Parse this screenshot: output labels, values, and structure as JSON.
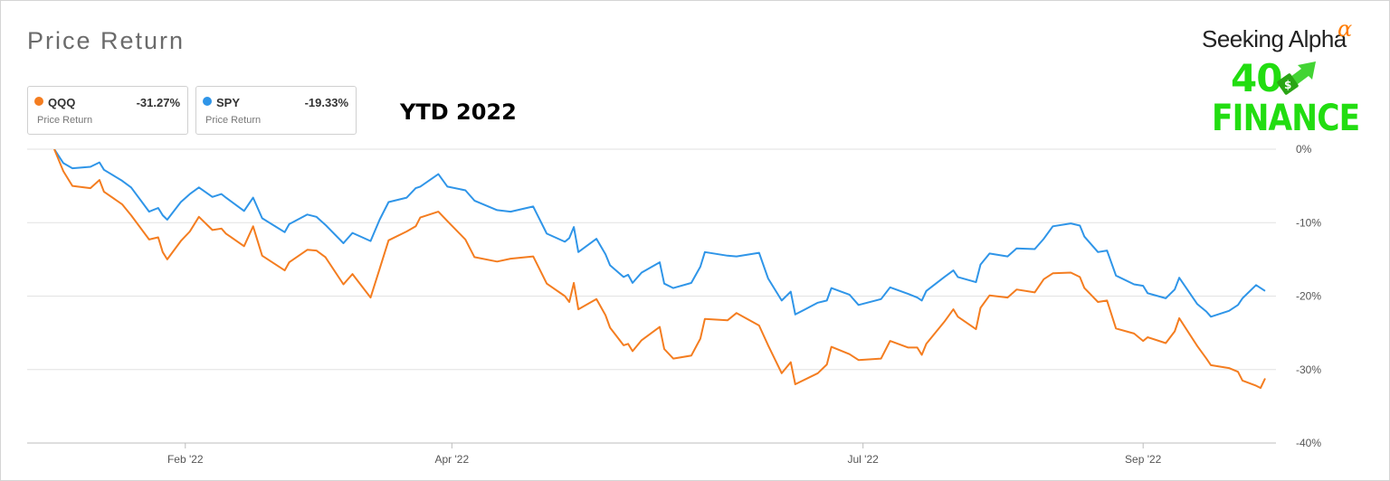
{
  "header": {
    "title": "Price Return"
  },
  "annotation": "YTD 2022",
  "logo": {
    "brand": "Seeking Alpha",
    "alpha_symbol": "α",
    "line1": "40",
    "line2": "FINANCE",
    "icon": "dollar-arrow-icon"
  },
  "legend": [
    {
      "ticker": "QQQ",
      "value": "-31.27%",
      "sub": "Price Return",
      "color": "#f47d20"
    },
    {
      "ticker": "SPY",
      "value": "-19.33%",
      "sub": "Price Return",
      "color": "#2f95e8"
    }
  ],
  "chart_data": {
    "type": "line",
    "x_labels": [
      "Feb '22",
      "Apr '22",
      "Jul '22",
      "Sep '22"
    ],
    "y_ticks": [
      0,
      -10,
      -20,
      -30,
      -40
    ],
    "y_tick_labels": [
      "0%",
      "-10%",
      "-20%",
      "-30%",
      "-40%"
    ],
    "ylim": [
      -40,
      0
    ],
    "grid": true,
    "legend_position": "top-left",
    "x_ticks": [
      "2022-02-01",
      "2022-04-01",
      "2022-07-01",
      "2022-09-01"
    ],
    "x_range": [
      "2022-01-03",
      "2022-09-28"
    ],
    "series": [
      {
        "name": "QQQ",
        "color": "#f47d20",
        "points": [
          [
            "2022-01-03",
            0
          ],
          [
            "2022-01-05",
            -3
          ],
          [
            "2022-01-07",
            -5
          ],
          [
            "2022-01-11",
            -5.3
          ],
          [
            "2022-01-13",
            -4.2
          ],
          [
            "2022-01-14",
            -5.8
          ],
          [
            "2022-01-18",
            -7.5
          ],
          [
            "2022-01-20",
            -9
          ],
          [
            "2022-01-24",
            -12.3
          ],
          [
            "2022-01-26",
            -12
          ],
          [
            "2022-01-27",
            -14
          ],
          [
            "2022-01-28",
            -15
          ],
          [
            "2022-01-31",
            -12.5
          ],
          [
            "2022-02-02",
            -11.2
          ],
          [
            "2022-02-04",
            -9.2
          ],
          [
            "2022-02-07",
            -11
          ],
          [
            "2022-02-09",
            -10.8
          ],
          [
            "2022-02-10",
            -11.5
          ],
          [
            "2022-02-14",
            -13.2
          ],
          [
            "2022-02-16",
            -10.5
          ],
          [
            "2022-02-18",
            -14.5
          ],
          [
            "2022-02-23",
            -16.5
          ],
          [
            "2022-02-24",
            -15.4
          ],
          [
            "2022-02-28",
            -13.7
          ],
          [
            "2022-03-02",
            -13.8
          ],
          [
            "2022-03-04",
            -14.7
          ],
          [
            "2022-03-08",
            -18.4
          ],
          [
            "2022-03-10",
            -17
          ],
          [
            "2022-03-14",
            -20.2
          ],
          [
            "2022-03-16",
            -16.3
          ],
          [
            "2022-03-18",
            -12.4
          ],
          [
            "2022-03-22",
            -11.2
          ],
          [
            "2022-03-24",
            -10.5
          ],
          [
            "2022-03-25",
            -9.3
          ],
          [
            "2022-03-29",
            -8.5
          ],
          [
            "2022-03-31",
            -9.8
          ],
          [
            "2022-04-04",
            -12.3
          ],
          [
            "2022-04-06",
            -14.7
          ],
          [
            "2022-04-11",
            -15.3
          ],
          [
            "2022-04-14",
            -14.9
          ],
          [
            "2022-04-19",
            -14.6
          ],
          [
            "2022-04-22",
            -18.3
          ],
          [
            "2022-04-26",
            -20
          ],
          [
            "2022-04-27",
            -20.8
          ],
          [
            "2022-04-28",
            -18.2
          ],
          [
            "2022-04-29",
            -21.8
          ],
          [
            "2022-05-03",
            -20.4
          ],
          [
            "2022-05-05",
            -22.6
          ],
          [
            "2022-05-06",
            -24.3
          ],
          [
            "2022-05-09",
            -26.7
          ],
          [
            "2022-05-10",
            -26.5
          ],
          [
            "2022-05-11",
            -27.5
          ],
          [
            "2022-05-13",
            -26
          ],
          [
            "2022-05-17",
            -24.2
          ],
          [
            "2022-05-18",
            -27.2
          ],
          [
            "2022-05-20",
            -28.5
          ],
          [
            "2022-05-24",
            -28.1
          ],
          [
            "2022-05-26",
            -25.8
          ],
          [
            "2022-05-27",
            -23.1
          ],
          [
            "2022-06-01",
            -23.3
          ],
          [
            "2022-06-03",
            -22.3
          ],
          [
            "2022-06-08",
            -24
          ],
          [
            "2022-06-10",
            -26.7
          ],
          [
            "2022-06-13",
            -30.5
          ],
          [
            "2022-06-15",
            -29
          ],
          [
            "2022-06-16",
            -32
          ],
          [
            "2022-06-21",
            -30.5
          ],
          [
            "2022-06-23",
            -29.3
          ],
          [
            "2022-06-24",
            -26.9
          ],
          [
            "2022-06-28",
            -27.9
          ],
          [
            "2022-06-30",
            -28.7
          ],
          [
            "2022-07-05",
            -28.5
          ],
          [
            "2022-07-07",
            -26.1
          ],
          [
            "2022-07-11",
            -27
          ],
          [
            "2022-07-13",
            -27
          ],
          [
            "2022-07-14",
            -28
          ],
          [
            "2022-07-15",
            -26.5
          ],
          [
            "2022-07-19",
            -23.5
          ],
          [
            "2022-07-21",
            -21.8
          ],
          [
            "2022-07-22",
            -22.8
          ],
          [
            "2022-07-26",
            -24.5
          ],
          [
            "2022-07-27",
            -21.6
          ],
          [
            "2022-07-29",
            -19.9
          ],
          [
            "2022-08-02",
            -20.2
          ],
          [
            "2022-08-04",
            -19.1
          ],
          [
            "2022-08-08",
            -19.5
          ],
          [
            "2022-08-10",
            -17.7
          ],
          [
            "2022-08-12",
            -16.9
          ],
          [
            "2022-08-16",
            -16.8
          ],
          [
            "2022-08-18",
            -17.4
          ],
          [
            "2022-08-19",
            -18.9
          ],
          [
            "2022-08-22",
            -20.8
          ],
          [
            "2022-08-24",
            -20.6
          ],
          [
            "2022-08-26",
            -24.4
          ],
          [
            "2022-08-30",
            -25.1
          ],
          [
            "2022-09-01",
            -26.1
          ],
          [
            "2022-09-02",
            -25.6
          ],
          [
            "2022-09-06",
            -26.4
          ],
          [
            "2022-09-08",
            -24.8
          ],
          [
            "2022-09-09",
            -23
          ],
          [
            "2022-09-13",
            -26.8
          ],
          [
            "2022-09-15",
            -28.5
          ],
          [
            "2022-09-16",
            -29.4
          ],
          [
            "2022-09-20",
            -29.8
          ],
          [
            "2022-09-22",
            -30.3
          ],
          [
            "2022-09-23",
            -31.5
          ],
          [
            "2022-09-26",
            -32.2
          ],
          [
            "2022-09-27",
            -32.5
          ],
          [
            "2022-09-28",
            -31.2
          ]
        ]
      },
      {
        "name": "SPY",
        "color": "#2f95e8",
        "points": [
          [
            "2022-01-03",
            0
          ],
          [
            "2022-01-05",
            -1.9
          ],
          [
            "2022-01-07",
            -2.6
          ],
          [
            "2022-01-11",
            -2.4
          ],
          [
            "2022-01-13",
            -1.8
          ],
          [
            "2022-01-14",
            -2.8
          ],
          [
            "2022-01-18",
            -4.3
          ],
          [
            "2022-01-20",
            -5.2
          ],
          [
            "2022-01-24",
            -8.5
          ],
          [
            "2022-01-26",
            -8
          ],
          [
            "2022-01-27",
            -9
          ],
          [
            "2022-01-28",
            -9.6
          ],
          [
            "2022-01-31",
            -7.2
          ],
          [
            "2022-02-02",
            -6.1
          ],
          [
            "2022-02-04",
            -5.2
          ],
          [
            "2022-02-07",
            -6.5
          ],
          [
            "2022-02-09",
            -6.1
          ],
          [
            "2022-02-10",
            -6.6
          ],
          [
            "2022-02-14",
            -8.4
          ],
          [
            "2022-02-16",
            -6.6
          ],
          [
            "2022-02-18",
            -9.4
          ],
          [
            "2022-02-23",
            -11.3
          ],
          [
            "2022-02-24",
            -10.2
          ],
          [
            "2022-02-28",
            -8.9
          ],
          [
            "2022-03-02",
            -9.2
          ],
          [
            "2022-03-04",
            -10.3
          ],
          [
            "2022-03-08",
            -12.8
          ],
          [
            "2022-03-10",
            -11.4
          ],
          [
            "2022-03-14",
            -12.5
          ],
          [
            "2022-03-16",
            -9.6
          ],
          [
            "2022-03-18",
            -7.2
          ],
          [
            "2022-03-22",
            -6.6
          ],
          [
            "2022-03-24",
            -5.3
          ],
          [
            "2022-03-25",
            -5.1
          ],
          [
            "2022-03-29",
            -3.4
          ],
          [
            "2022-03-31",
            -5.1
          ],
          [
            "2022-04-04",
            -5.6
          ],
          [
            "2022-04-06",
            -7
          ],
          [
            "2022-04-11",
            -8.3
          ],
          [
            "2022-04-14",
            -8.5
          ],
          [
            "2022-04-19",
            -7.8
          ],
          [
            "2022-04-22",
            -11.5
          ],
          [
            "2022-04-26",
            -12.6
          ],
          [
            "2022-04-27",
            -12.1
          ],
          [
            "2022-04-28",
            -10.6
          ],
          [
            "2022-04-29",
            -14
          ],
          [
            "2022-05-03",
            -12.2
          ],
          [
            "2022-05-05",
            -14.3
          ],
          [
            "2022-05-06",
            -15.8
          ],
          [
            "2022-05-09",
            -17.4
          ],
          [
            "2022-05-10",
            -17.1
          ],
          [
            "2022-05-11",
            -18.2
          ],
          [
            "2022-05-13",
            -16.8
          ],
          [
            "2022-05-17",
            -15.4
          ],
          [
            "2022-05-18",
            -18.3
          ],
          [
            "2022-05-20",
            -18.9
          ],
          [
            "2022-05-24",
            -18.2
          ],
          [
            "2022-05-26",
            -16
          ],
          [
            "2022-05-27",
            -14
          ],
          [
            "2022-06-01",
            -14.5
          ],
          [
            "2022-06-03",
            -14.6
          ],
          [
            "2022-06-08",
            -14.1
          ],
          [
            "2022-06-10",
            -17.6
          ],
          [
            "2022-06-13",
            -20.6
          ],
          [
            "2022-06-15",
            -19.4
          ],
          [
            "2022-06-16",
            -22.5
          ],
          [
            "2022-06-21",
            -20.9
          ],
          [
            "2022-06-23",
            -20.6
          ],
          [
            "2022-06-24",
            -18.9
          ],
          [
            "2022-06-28",
            -19.8
          ],
          [
            "2022-06-30",
            -21.2
          ],
          [
            "2022-07-05",
            -20.4
          ],
          [
            "2022-07-07",
            -18.8
          ],
          [
            "2022-07-11",
            -19.7
          ],
          [
            "2022-07-13",
            -20.2
          ],
          [
            "2022-07-14",
            -20.6
          ],
          [
            "2022-07-15",
            -19.3
          ],
          [
            "2022-07-19",
            -17.4
          ],
          [
            "2022-07-21",
            -16.5
          ],
          [
            "2022-07-22",
            -17.4
          ],
          [
            "2022-07-26",
            -18.1
          ],
          [
            "2022-07-27",
            -15.7
          ],
          [
            "2022-07-29",
            -14.2
          ],
          [
            "2022-08-02",
            -14.6
          ],
          [
            "2022-08-04",
            -13.5
          ],
          [
            "2022-08-08",
            -13.6
          ],
          [
            "2022-08-10",
            -12.2
          ],
          [
            "2022-08-12",
            -10.5
          ],
          [
            "2022-08-16",
            -10.1
          ],
          [
            "2022-08-18",
            -10.4
          ],
          [
            "2022-08-19",
            -11.9
          ],
          [
            "2022-08-22",
            -14
          ],
          [
            "2022-08-24",
            -13.8
          ],
          [
            "2022-08-26",
            -17.2
          ],
          [
            "2022-08-30",
            -18.4
          ],
          [
            "2022-09-01",
            -18.6
          ],
          [
            "2022-09-02",
            -19.6
          ],
          [
            "2022-09-06",
            -20.3
          ],
          [
            "2022-09-08",
            -19.1
          ],
          [
            "2022-09-09",
            -17.5
          ],
          [
            "2022-09-13",
            -21.1
          ],
          [
            "2022-09-15",
            -22.1
          ],
          [
            "2022-09-16",
            -22.8
          ],
          [
            "2022-09-20",
            -22
          ],
          [
            "2022-09-22",
            -21.2
          ],
          [
            "2022-09-23",
            -20.3
          ],
          [
            "2022-09-26",
            -18.5
          ],
          [
            "2022-09-27",
            -18.9
          ],
          [
            "2022-09-28",
            -19.3
          ]
        ]
      }
    ]
  }
}
